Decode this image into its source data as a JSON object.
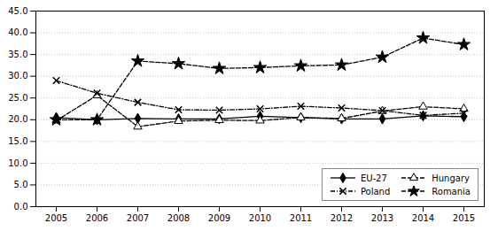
{
  "chart_data": {
    "type": "line",
    "x": [
      2005,
      2006,
      2007,
      2008,
      2009,
      2010,
      2011,
      2012,
      2013,
      2014,
      2015
    ],
    "series": [
      {
        "name": "EU-27",
        "color": "#000000",
        "marker": "diamond",
        "line_style": "solid",
        "values": [
          20.5,
          20.0,
          20.3,
          20.2,
          20.2,
          20.8,
          20.5,
          20.2,
          20.2,
          20.9,
          20.7
        ]
      },
      {
        "name": "Hungary",
        "color": "#000000",
        "marker": "triangle-open",
        "line_style": "dashed",
        "values": [
          19.8,
          25.6,
          18.4,
          19.7,
          19.9,
          19.8,
          20.5,
          20.3,
          22.0,
          23.0,
          22.5
        ]
      },
      {
        "name": "Poland",
        "color": "#000000",
        "marker": "x",
        "line_style": "dashdot",
        "values": [
          29.0,
          26.1,
          24.0,
          22.3,
          22.2,
          22.5,
          23.1,
          22.7,
          22.1,
          21.0,
          21.5
        ]
      },
      {
        "name": "Romania",
        "color": "#000000",
        "marker": "star",
        "line_style": "dashed",
        "values": [
          20.0,
          20.0,
          33.5,
          32.9,
          31.8,
          32.0,
          32.4,
          32.6,
          34.4,
          38.8,
          37.3
        ]
      }
    ],
    "xlim": [
      2004.5,
      2015.5
    ],
    "xticks": [
      2005,
      2006,
      2007,
      2008,
      2009,
      2010,
      2011,
      2012,
      2013,
      2014,
      2015
    ],
    "ylim": [
      0.0,
      45.0
    ],
    "yticks": [
      {
        "value": 0.0,
        "label": "0.0"
      },
      {
        "value": 5.0,
        "label": "5.0"
      },
      {
        "value": 10.0,
        "label": "10.0"
      },
      {
        "value": 15.0,
        "label": "15.0"
      },
      {
        "value": 20.0,
        "label": "20.0"
      },
      {
        "value": 25.0,
        "label": "25.0"
      },
      {
        "value": 30.0,
        "label": "30.0"
      },
      {
        "value": 35.0,
        "label": "35.0"
      },
      {
        "value": 40.0,
        "label": "40.0"
      },
      {
        "value": 45.0,
        "label": "45.0"
      }
    ],
    "grid": true,
    "legend": "lower right"
  }
}
